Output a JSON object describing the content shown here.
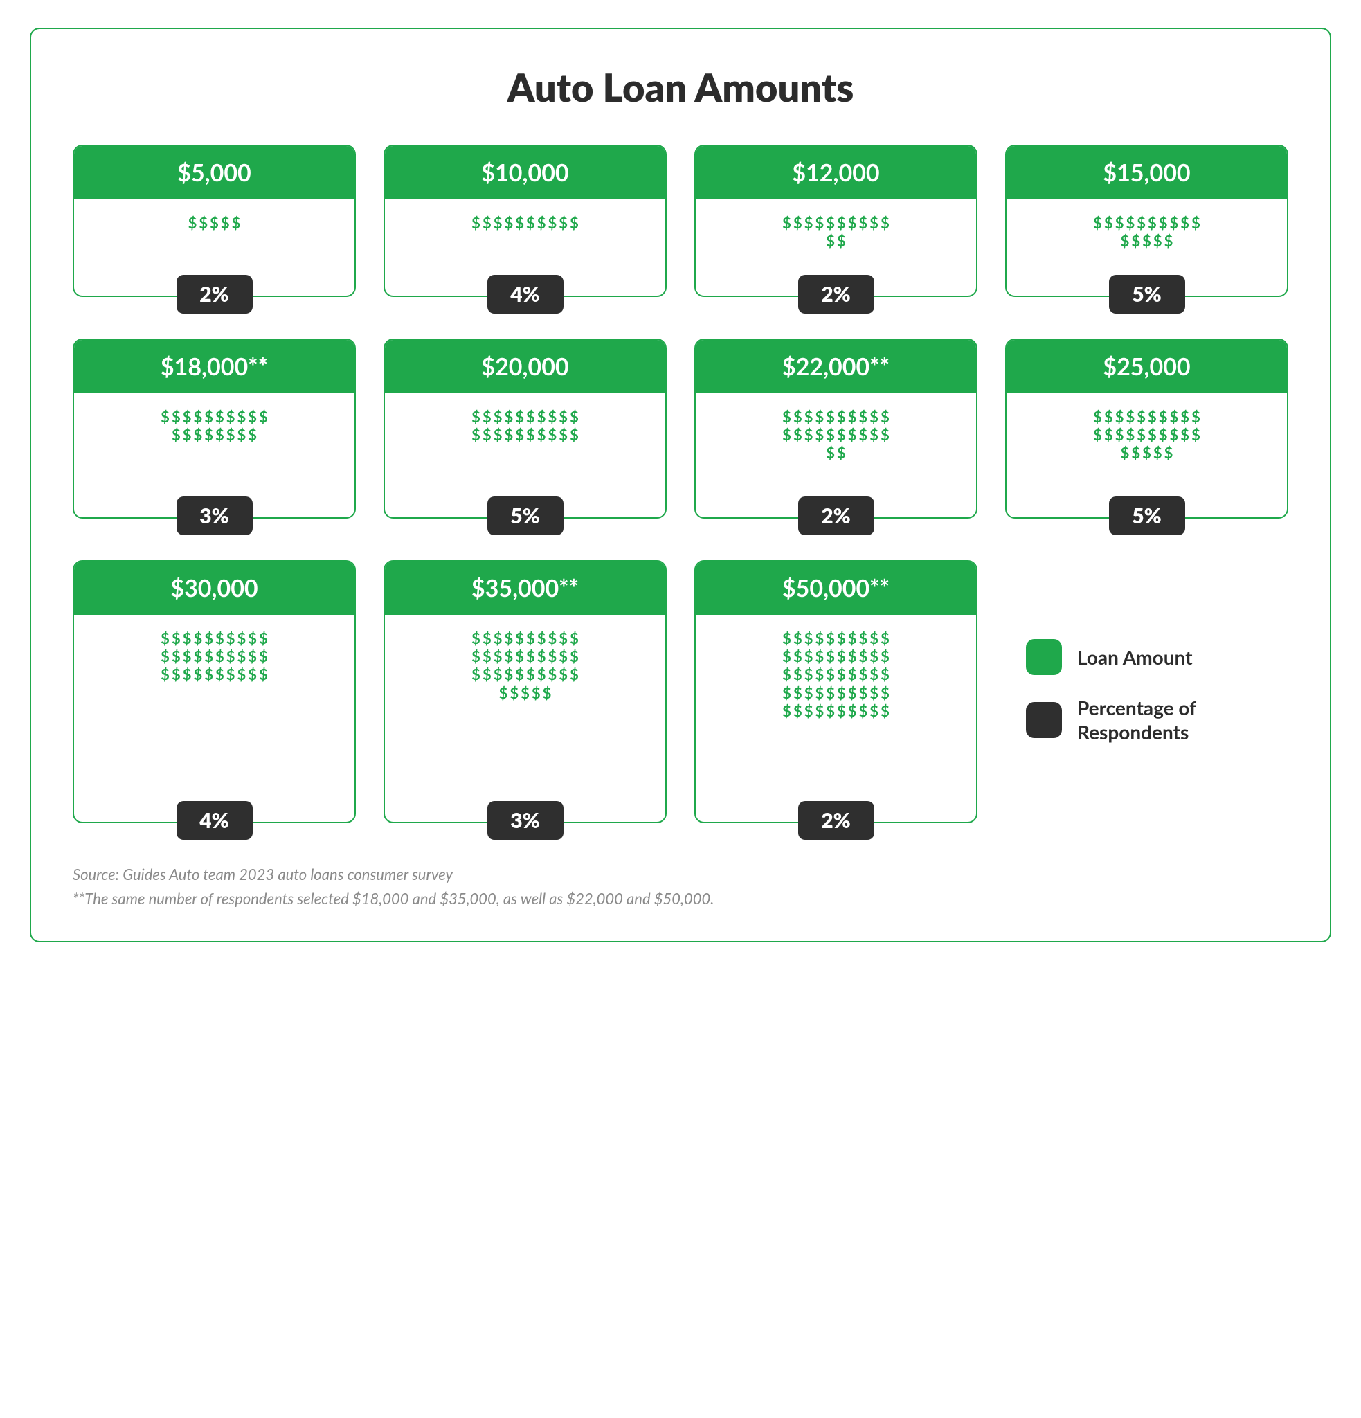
{
  "title": "Auto Loan Amounts",
  "title_fontsize": 56,
  "title_color": "#2c2c2c",
  "frame_border_color": "#1fa84b",
  "card_border_color": "#1fa84b",
  "header_bg": "#1fa84b",
  "header_text_color": "#ffffff",
  "header_fontsize": 34,
  "badge_bg": "#2f2f2f",
  "badge_text_color": "#ffffff",
  "badge_fontsize": 30,
  "dollar_color": "#1fa84b",
  "dollar_fontsize": 22,
  "dollar_max_per_row": 10,
  "legend_label_fontsize": 28,
  "legend_label_color": "#2c2c2c",
  "footnote_color": "#8a8a8a",
  "footnote_fontsize": 22,
  "card_min_heights": [
    220,
    260,
    380
  ],
  "rows_layout": [
    4,
    4,
    3
  ],
  "cards": [
    {
      "amount_label": "$5,000",
      "dollar_count": 5,
      "percent_label": "2%"
    },
    {
      "amount_label": "$10,000",
      "dollar_count": 10,
      "percent_label": "4%"
    },
    {
      "amount_label": "$12,000",
      "dollar_count": 12,
      "percent_label": "2%"
    },
    {
      "amount_label": "$15,000",
      "dollar_count": 15,
      "percent_label": "5%"
    },
    {
      "amount_label": "$18,000**",
      "dollar_count": 18,
      "percent_label": "3%"
    },
    {
      "amount_label": "$20,000",
      "dollar_count": 20,
      "percent_label": "5%"
    },
    {
      "amount_label": "$22,000**",
      "dollar_count": 22,
      "percent_label": "2%"
    },
    {
      "amount_label": "$25,000",
      "dollar_count": 25,
      "percent_label": "5%"
    },
    {
      "amount_label": "$30,000",
      "dollar_count": 30,
      "percent_label": "4%"
    },
    {
      "amount_label": "$35,000**",
      "dollar_count": 35,
      "percent_label": "3%"
    },
    {
      "amount_label": "$50,000**",
      "dollar_count": 50,
      "percent_label": "2%"
    }
  ],
  "legend": {
    "items": [
      {
        "swatch_color": "#1fa84b",
        "label": "Loan Amount"
      },
      {
        "swatch_color": "#2f2f2f",
        "label": "Percentage of\nRespondents"
      }
    ]
  },
  "footnotes": [
    "Source: Guides Auto team 2023 auto loans consumer survey",
    "**The same number of respondents selected $18,000 and $35,000, as well as $22,000 and $50,000."
  ]
}
